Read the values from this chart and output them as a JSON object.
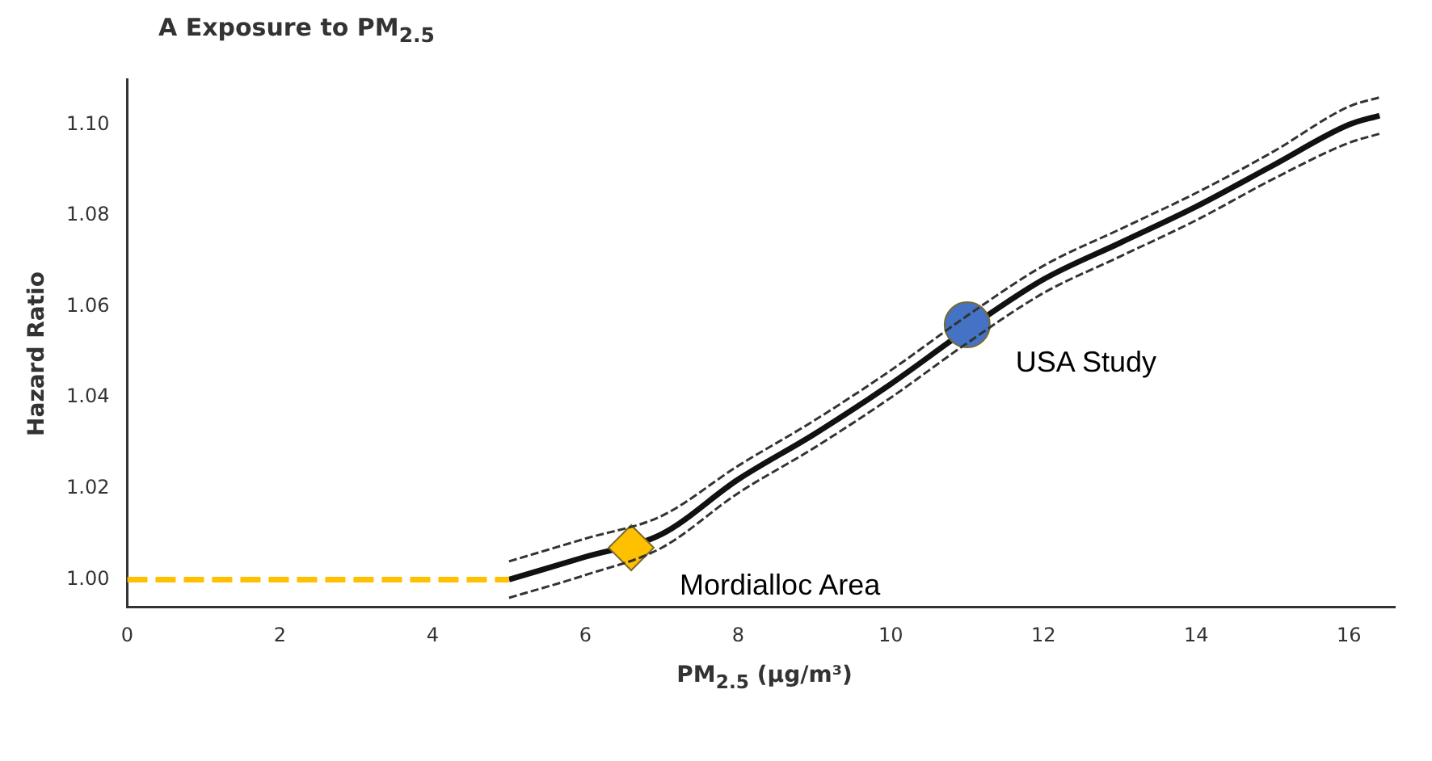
{
  "chart_data": {
    "type": "line",
    "title": "A Exposure to PM$_{2.5}$",
    "xlabel": "PM$_{2.5}$ (μg/m³)",
    "ylabel": "Hazard Ratio",
    "xlim": [
      0,
      16.6
    ],
    "xticks": [
      0,
      2,
      4,
      6,
      8,
      10,
      12,
      14,
      16
    ],
    "ylim": [
      0.994,
      1.11
    ],
    "yticks": [
      {
        "value": 1,
        "label": "1.00"
      },
      1.02,
      1.04,
      1.06,
      1.08,
      {
        "value": 1.1,
        "label": "1.10"
      }
    ],
    "grid": false,
    "legend": false,
    "series": [
      {
        "color": "#111111",
        "marker": "none",
        "line_style": "solid",
        "x": [
          5,
          6,
          7,
          8,
          9,
          10,
          11,
          12,
          13,
          14,
          15,
          16,
          16.4
        ],
        "values": [
          1.0,
          1.005,
          1.01,
          1.022,
          1.032,
          1.043,
          1.055,
          1.066,
          1.074,
          1.082,
          1.091,
          1.1,
          1.102
        ]
      },
      {
        "color": "#333333",
        "marker": "none",
        "line_style": "dashed",
        "x": [
          5,
          6,
          7,
          8,
          9,
          10,
          11,
          12,
          13,
          14,
          15,
          16,
          16.4
        ],
        "values": [
          0.996,
          1.001,
          1.007,
          1.019,
          1.029,
          1.04,
          1.052,
          1.063,
          1.071,
          1.079,
          1.088,
          1.096,
          1.098
        ]
      },
      {
        "color": "#333333",
        "marker": "none",
        "line_style": "dashed",
        "x": [
          5,
          6,
          7,
          8,
          9,
          10,
          11,
          12,
          13,
          14,
          15,
          16,
          16.4
        ],
        "values": [
          1.004,
          1.009,
          1.014,
          1.025,
          1.035,
          1.046,
          1.058,
          1.069,
          1.077,
          1.085,
          1.094,
          1.104,
          1.106
        ]
      },
      {
        "color": "#ffc000",
        "marker": "none",
        "line_style": "dashed",
        "x": [
          0,
          5
        ],
        "values": [
          1.0,
          1.0
        ]
      },
      {
        "type": "scatter",
        "color": "#4472c4",
        "marker": "circle",
        "x": [
          11
        ],
        "values": [
          1.056
        ]
      },
      {
        "type": "scatter",
        "color": "#ffc000",
        "marker": "diamond",
        "x": [
          6.6
        ],
        "values": [
          1.007
        ]
      }
    ],
    "annotations": [
      {
        "text": "USA Study",
        "x": 11,
        "y": 1.056
      },
      {
        "text": "Mordialloc Area",
        "x": 6.6,
        "y": 1.007
      }
    ]
  }
}
